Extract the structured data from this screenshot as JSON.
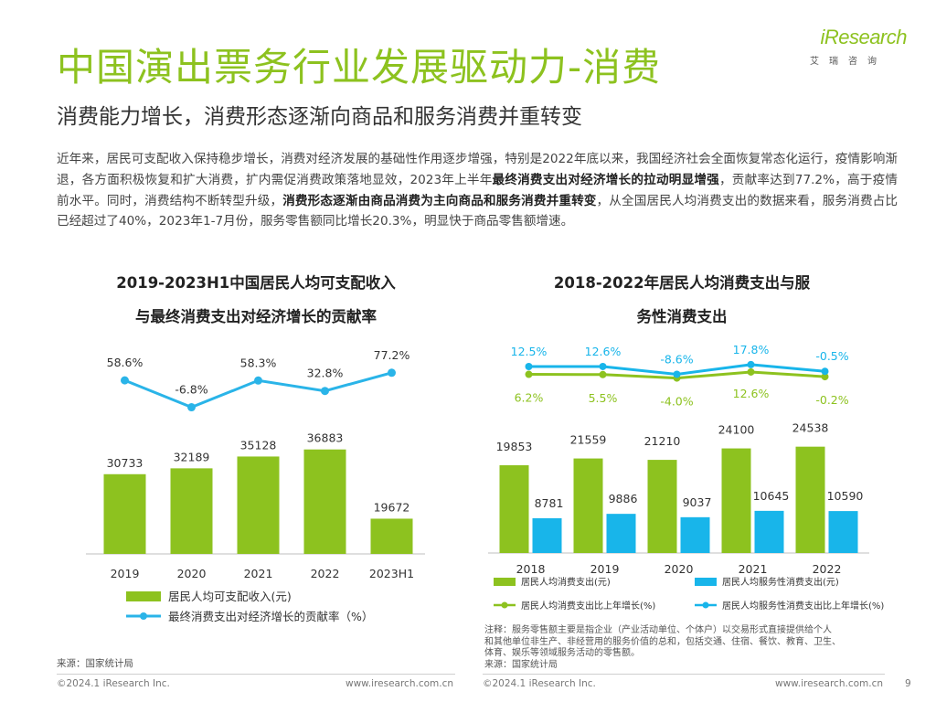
{
  "header": {
    "title": "中国演出票务行业发展驱动力-消费",
    "subtitle": "消费能力增长，消费形态逐渐向商品和服务消费并重转变",
    "logo_text": "iResearch",
    "logo_sub": "艾瑞咨询"
  },
  "intro": [
    {
      "text": "近年来，居民可支配收入保持稳步增长，消费对经济发展的基础性作用逐步增强，特别是2022年底以来，我国经济社会全面恢复常态化运行，疫情影响渐退，各方面积极恢复和扩大消费，扩内需促消费政策落地显效，2023年上半年",
      "bold": false
    },
    {
      "text": "最终消费支出对经济增长的拉动明显增强",
      "bold": true
    },
    {
      "text": "，贡献率达到77.2%，高于疫情前水平。同时，消费结构不断转型升级，",
      "bold": false
    },
    {
      "text": "消费形态逐渐由商品消费为主向商品和服务消费并重转变",
      "bold": true
    },
    {
      "text": "，从全国居民人均消费支出的数据来看，服务消费占比已经超过了40%，2023年1-7月份，服务零售额同比增长20.3%，明显快于商品零售额增速。",
      "bold": false
    }
  ],
  "chart_data": [
    {
      "type": "bar",
      "title": "2019-2023H1中国居民人均可支配收入与最终消费支出对经济增长的贡献率",
      "title_lines": [
        "2019-2023H1中国居民人均可支配收入",
        "与最终消费支出对经济增长的贡献率"
      ],
      "categories": [
        "2019",
        "2020",
        "2021",
        "2022",
        "2023H1"
      ],
      "series": [
        {
          "name": "居民人均可支配收入(元)",
          "kind": "bar",
          "color": "#8dc21f",
          "values": [
            30733,
            32189,
            35128,
            36883,
            19672
          ],
          "labels": [
            "30733",
            "32189",
            "35128",
            "36883",
            "19672"
          ]
        },
        {
          "name": "最终消费支出对经济增长的贡献率（%）",
          "kind": "line",
          "color": "#2ab4e8",
          "values": [
            58.6,
            -6.8,
            58.3,
            32.8,
            77.2
          ],
          "labels": [
            "58.6%",
            "-6.8%",
            "58.3%",
            "32.8%",
            "77.2%"
          ]
        }
      ],
      "ylim": [
        0,
        40000
      ],
      "line_ylim": [
        -30,
        90
      ],
      "source": "来源：国家统计局"
    },
    {
      "type": "bar",
      "title": "2018-2022年居民人均消费支出与服务性消费支出",
      "title_lines": [
        "2018-2022年居民人均消费支出与服",
        "务性消费支出"
      ],
      "categories": [
        "2018",
        "2019",
        "2020",
        "2021",
        "2022"
      ],
      "series": [
        {
          "name": "居民人均消费支出(元)",
          "kind": "bar",
          "color": "#8dc21f",
          "values": [
            19853,
            21559,
            21210,
            24100,
            24538
          ],
          "labels": [
            "19853",
            "21559",
            "21210",
            "24100",
            "24538"
          ]
        },
        {
          "name": "居民人均服务性消费支出(元)",
          "kind": "bar",
          "color": "#18b5ea",
          "values": [
            8781,
            9886,
            9037,
            10645,
            10590
          ],
          "labels": [
            "8781",
            "9886",
            "9037",
            "10645",
            "10590"
          ]
        },
        {
          "name": "居民人均消费支出比上年增长(%)",
          "kind": "line",
          "color": "#8dc21f",
          "values": [
            6.2,
            5.5,
            -4.0,
            12.6,
            -0.2
          ],
          "labels": [
            "6.2%",
            "5.5%",
            "-4.0%",
            "12.6%",
            "-0.2%"
          ]
        },
        {
          "name": "居民人均服务性消费支出比上年增长(%)",
          "kind": "line",
          "color": "#18b5ea",
          "values": [
            12.5,
            12.6,
            -8.6,
            17.8,
            -0.5
          ],
          "labels": [
            "12.5%",
            "12.6%",
            "-8.6%",
            "17.8%",
            "-0.5%"
          ]
        }
      ],
      "ylim": [
        0,
        30000
      ],
      "line_ylim": [
        -60,
        60
      ],
      "note": [
        "注释：服务零售额主要是指企业（产业活动单位、个体户）以交易形式直接提供给个人",
        "和其他单位非生产、非经营用的服务价值的总和，包括交通、住宿、餐饮、教育、卫生、",
        "体育、娱乐等领域服务活动的零售额。",
        "来源：国家统计局"
      ]
    }
  ],
  "footer": {
    "left_copyright": "©2024.1 iResearch Inc.",
    "left_url": "www.iresearch.com.cn",
    "right_copyright": "©2024.1 iResearch Inc.",
    "right_url": "www.iresearch.com.cn",
    "page_number": "9"
  }
}
